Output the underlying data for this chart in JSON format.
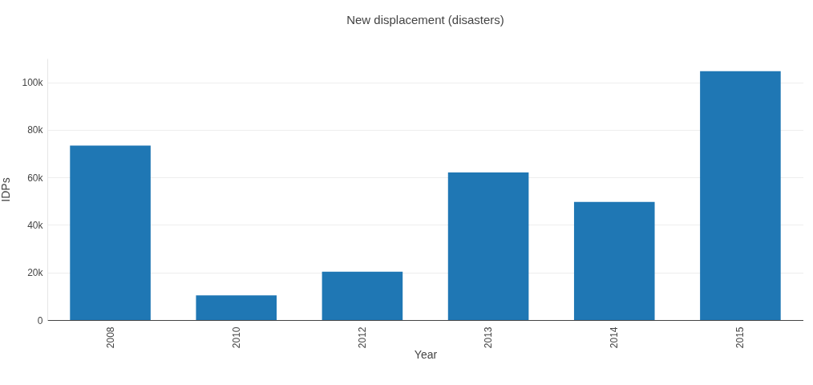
{
  "chart_data": {
    "type": "bar",
    "title": "New displacement (disasters)",
    "xlabel": "Year",
    "ylabel": "IDPs",
    "categories": [
      "2008",
      "2010",
      "2012",
      "2013",
      "2014",
      "2015"
    ],
    "values": [
      73400,
      10400,
      20300,
      62100,
      49700,
      104700
    ],
    "color": "#1f77b4",
    "ylim": [
      0,
      110000
    ],
    "yticks": [
      {
        "value": 0,
        "label": "0"
      },
      {
        "value": 20000,
        "label": "20k"
      },
      {
        "value": 40000,
        "label": "40k"
      },
      {
        "value": 60000,
        "label": "60k"
      },
      {
        "value": 80000,
        "label": "80k"
      },
      {
        "value": 100000,
        "label": "100k"
      }
    ],
    "grid": "y"
  }
}
